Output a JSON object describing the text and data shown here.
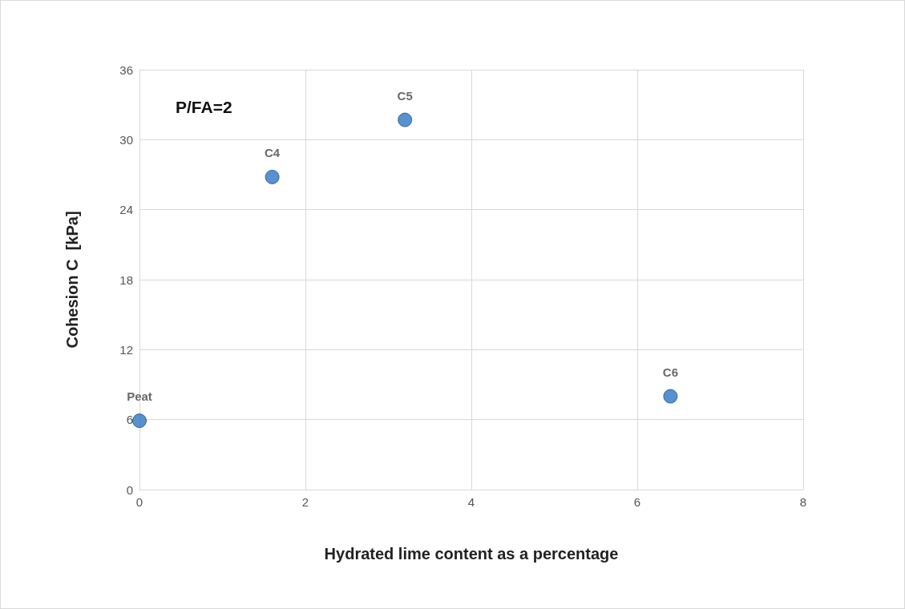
{
  "chart_data": {
    "type": "scatter",
    "xlabel": "Hydrated lime content as a percentage",
    "ylabel": "Cohesion C  [kPa]",
    "annotations": [
      "P/FA=2"
    ],
    "x": [
      0,
      1.6,
      3.2,
      6.4
    ],
    "series": [
      {
        "color": "#2e75c6",
        "values": [
          5.9,
          26.8,
          31.7,
          8
        ]
      }
    ],
    "value_labels": [
      "Peat",
      "C4",
      "C5",
      "C6"
    ],
    "xlim": [
      0,
      8
    ],
    "xticks": [
      0,
      2,
      4,
      6,
      8
    ],
    "ylim": [
      0,
      36
    ],
    "yticks": [
      0,
      6,
      12,
      18,
      24,
      30,
      36
    ],
    "grid": true,
    "marker": "circle"
  }
}
